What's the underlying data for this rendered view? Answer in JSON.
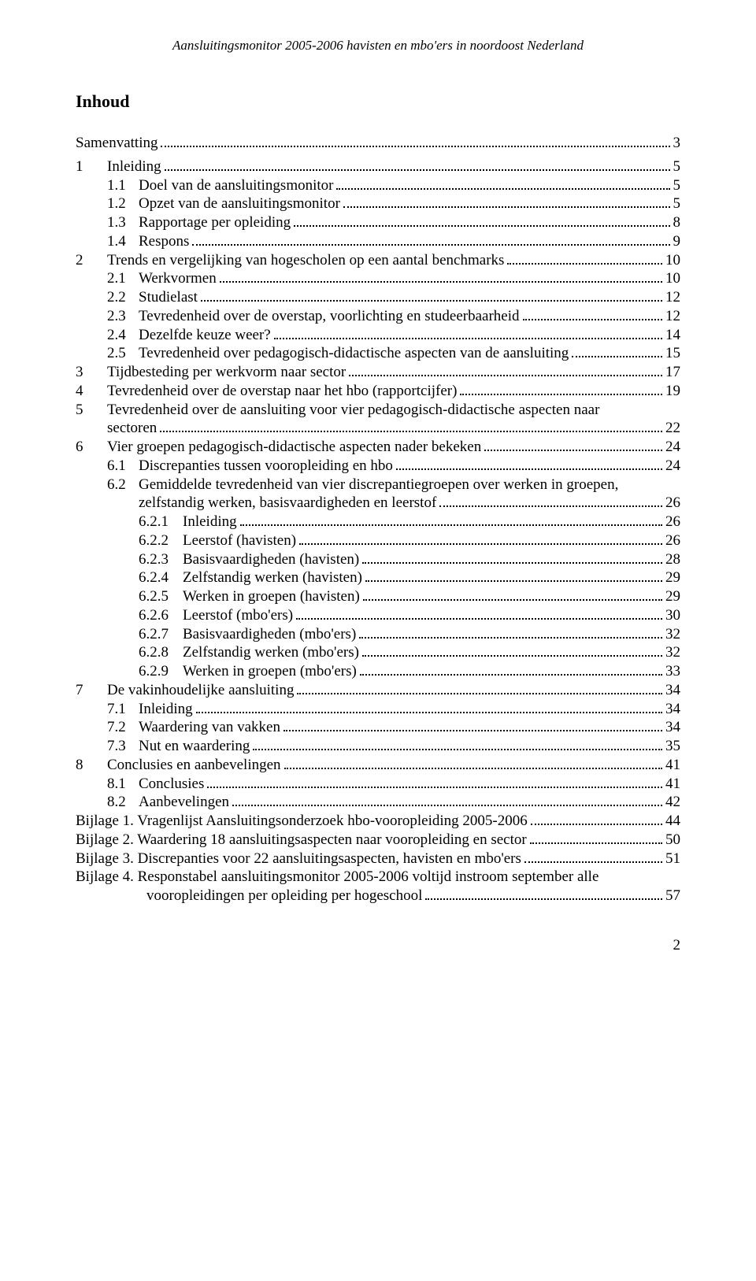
{
  "running_head": "Aansluitingsmonitor 2005-2006 havisten en mbo'ers in noordoost Nederland",
  "title": "Inhoud",
  "page_number": "2",
  "toc": [
    {
      "level": 0,
      "num": "",
      "label": "Samenvatting",
      "page": "3",
      "gap_after": true
    },
    {
      "level": 1,
      "num": "1",
      "label": "Inleiding",
      "page": "5"
    },
    {
      "level": 2,
      "num": "1.1",
      "label": "Doel van de aansluitingsmonitor",
      "page": "5"
    },
    {
      "level": 2,
      "num": "1.2",
      "label": "Opzet van de aansluitingsmonitor",
      "page": "5"
    },
    {
      "level": 2,
      "num": "1.3",
      "label": "Rapportage per opleiding",
      "page": "8"
    },
    {
      "level": 2,
      "num": "1.4",
      "label": "Respons",
      "page": "9"
    },
    {
      "level": 1,
      "num": "2",
      "label": "Trends en vergelijking van hogescholen op een aantal benchmarks",
      "page": "10"
    },
    {
      "level": 2,
      "num": "2.1",
      "label": "Werkvormen",
      "page": "10"
    },
    {
      "level": 2,
      "num": "2.2",
      "label": "Studielast",
      "page": "12"
    },
    {
      "level": 2,
      "num": "2.3",
      "label": "Tevredenheid over de overstap, voorlichting en studeerbaarheid",
      "page": "12"
    },
    {
      "level": 2,
      "num": "2.4",
      "label": "Dezelfde keuze weer?",
      "page": "14"
    },
    {
      "level": 2,
      "num": "2.5",
      "label": "Tevredenheid over pedagogisch-didactische aspecten van de aansluiting",
      "page": "15"
    },
    {
      "level": 1,
      "num": "3",
      "label": "Tijdbesteding per werkvorm naar sector",
      "page": "17"
    },
    {
      "level": 1,
      "num": "4",
      "label": "Tevredenheid over de overstap naar het hbo (rapportcijfer)",
      "page": "19"
    },
    {
      "level": 1,
      "num": "5",
      "label": "Tevredenheid over de aansluiting voor vier pedagogisch-didactische aspecten naar",
      "cont": "sectoren",
      "page": "22"
    },
    {
      "level": 1,
      "num": "6",
      "label": "Vier groepen pedagogisch-didactische aspecten nader bekeken",
      "page": "24"
    },
    {
      "level": 2,
      "num": "6.1",
      "label": "Discrepanties tussen vooropleiding en hbo",
      "page": "24"
    },
    {
      "level": 2,
      "num": "6.2",
      "label": "Gemiddelde tevredenheid van vier discrepantiegroepen over werken in groepen,",
      "cont": "zelfstandig werken, basisvaardigheden en leerstof",
      "page": "26"
    },
    {
      "level": 3,
      "num": "6.2.1",
      "label": "Inleiding",
      "page": "26"
    },
    {
      "level": 3,
      "num": "6.2.2",
      "label": "Leerstof (havisten)",
      "page": "26"
    },
    {
      "level": 3,
      "num": "6.2.3",
      "label": "Basisvaardigheden (havisten)",
      "page": "28"
    },
    {
      "level": 3,
      "num": "6.2.4",
      "label": "Zelfstandig werken (havisten)",
      "page": "29"
    },
    {
      "level": 3,
      "num": "6.2.5",
      "label": "Werken in groepen (havisten)",
      "page": "29"
    },
    {
      "level": 3,
      "num": "6.2.6",
      "label": "Leerstof (mbo'ers)",
      "page": "30"
    },
    {
      "level": 3,
      "num": "6.2.7",
      "label": "Basisvaardigheden (mbo'ers)",
      "page": "32"
    },
    {
      "level": 3,
      "num": "6.2.8",
      "label": "Zelfstandig werken (mbo'ers)",
      "page": "32"
    },
    {
      "level": 3,
      "num": "6.2.9",
      "label": "Werken in groepen (mbo'ers)",
      "page": "33"
    },
    {
      "level": 1,
      "num": "7",
      "label": "De vakinhoudelijke aansluiting",
      "page": "34"
    },
    {
      "level": 2,
      "num": "7.1",
      "label": "Inleiding",
      "page": "34"
    },
    {
      "level": 2,
      "num": "7.2",
      "label": "Waardering van vakken",
      "page": "34"
    },
    {
      "level": 2,
      "num": "7.3",
      "label": "Nut en waardering",
      "page": "35"
    },
    {
      "level": 1,
      "num": "8",
      "label": "Conclusies en aanbevelingen",
      "page": "41"
    },
    {
      "level": 2,
      "num": "8.1",
      "label": "Conclusies",
      "page": "41"
    },
    {
      "level": 2,
      "num": "8.2",
      "label": "Aanbevelingen",
      "page": "42"
    },
    {
      "level": 0,
      "num": "",
      "label": "Bijlage 1. Vragenlijst Aansluitingsonderzoek hbo-vooropleiding 2005-2006",
      "page": "44"
    },
    {
      "level": 0,
      "num": "",
      "label": "Bijlage 2. Waardering 18 aansluitingsaspecten naar vooropleiding en sector",
      "page": "50"
    },
    {
      "level": 0,
      "num": "",
      "label": "Bijlage 3. Discrepanties voor 22 aansluitingsaspecten, havisten en mbo'ers",
      "page": "51"
    },
    {
      "level": 0,
      "num": "",
      "label": "Bijlage 4. Responstabel aansluitingsmonitor 2005-2006 voltijd instroom september alle",
      "cont": "vooropleidingen per opleiding per hogeschool",
      "cont_indent": "90px",
      "page": "57"
    }
  ]
}
